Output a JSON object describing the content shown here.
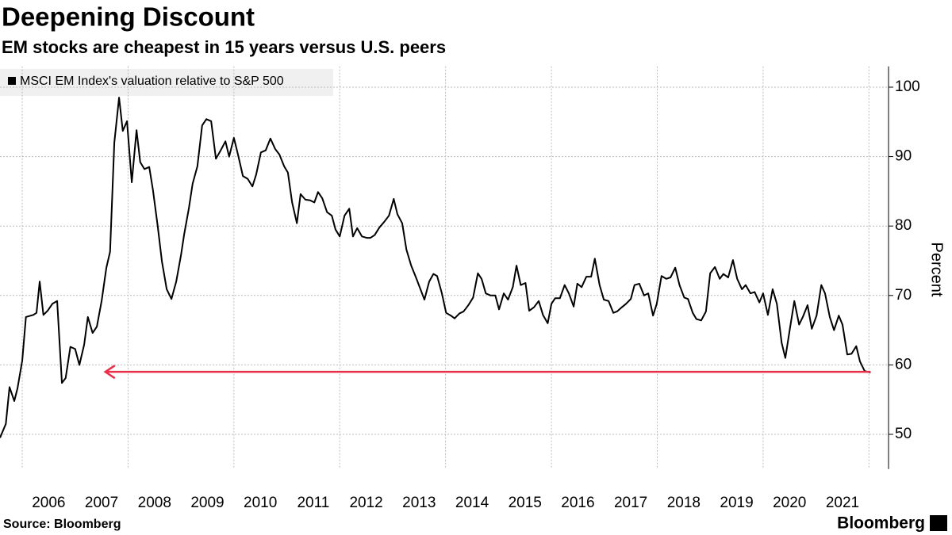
{
  "chart_data": {
    "type": "line",
    "title": "Deepening Discount",
    "subtitle": "EM stocks are cheapest in 15 years versus U.S. peers",
    "y_label": "Percent",
    "source": "Source: Bloomberg",
    "brand": "Bloomberg",
    "x": [
      2005.58,
      2005.69,
      2005.76,
      2005.85,
      2005.91,
      2006.0,
      2006.07,
      2006.21,
      2006.27,
      2006.33,
      2006.4,
      2006.48,
      2006.57,
      2006.66,
      2006.75,
      2006.82,
      2006.91,
      2007.0,
      2007.08,
      2007.17,
      2007.24,
      2007.33,
      2007.41,
      2007.5,
      2007.59,
      2007.66,
      2007.74,
      2007.83,
      2007.9,
      2007.98,
      2008.07,
      2008.16,
      2008.23,
      2008.31,
      2008.4,
      2008.47,
      2008.56,
      2008.64,
      2008.73,
      2008.82,
      2008.91,
      2009.0,
      2009.06,
      2009.15,
      2009.22,
      2009.31,
      2009.4,
      2009.48,
      2009.57,
      2009.66,
      2009.75,
      2009.84,
      2009.91,
      2010.0,
      2010.08,
      2010.17,
      2010.26,
      2010.35,
      2010.42,
      2010.51,
      2010.6,
      2010.69,
      2010.78,
      2010.86,
      2010.95,
      2011.02,
      2011.1,
      2011.19,
      2011.26,
      2011.35,
      2011.44,
      2011.52,
      2011.59,
      2011.67,
      2011.76,
      2011.85,
      2011.92,
      2012.0,
      2012.09,
      2012.18,
      2012.25,
      2012.33,
      2012.42,
      2012.51,
      2012.58,
      2012.66,
      2012.75,
      2012.84,
      2012.93,
      2013.02,
      2013.09,
      2013.18,
      2013.26,
      2013.35,
      2013.44,
      2013.51,
      2013.6,
      2013.69,
      2013.77,
      2013.84,
      2013.93,
      2014.01,
      2014.1,
      2014.17,
      2014.26,
      2014.34,
      2014.43,
      2014.52,
      2014.61,
      2014.68,
      2014.76,
      2014.85,
      2014.94,
      2015.01,
      2015.1,
      2015.18,
      2015.27,
      2015.34,
      2015.42,
      2015.51,
      2015.58,
      2015.67,
      2015.76,
      2015.84,
      2015.93,
      2016.0,
      2016.07,
      2016.16,
      2016.25,
      2016.33,
      2016.42,
      2016.49,
      2016.57,
      2016.66,
      2016.75,
      2016.82,
      2016.91,
      2016.99,
      2017.08,
      2017.17,
      2017.24,
      2017.33,
      2017.41,
      2017.5,
      2017.57,
      2017.66,
      2017.75,
      2017.83,
      2017.92,
      2017.99,
      2018.08,
      2018.17,
      2018.25,
      2018.34,
      2018.42,
      2018.51,
      2018.58,
      2018.67,
      2018.74,
      2018.83,
      2018.92,
      2019.0,
      2019.09,
      2019.18,
      2019.25,
      2019.34,
      2019.43,
      2019.51,
      2019.6,
      2019.67,
      2019.76,
      2019.84,
      2019.93,
      2020.0,
      2020.09,
      2020.18,
      2020.26,
      2020.35,
      2020.42,
      2020.51,
      2020.59,
      2020.68,
      2020.75,
      2020.84,
      2020.92,
      2021.01,
      2021.1,
      2021.17,
      2021.26,
      2021.34,
      2021.43,
      2021.5,
      2021.59,
      2021.67,
      2021.76,
      2021.83,
      2021.92,
      2022.03
    ],
    "series": [
      {
        "name": "MSCI EM Index's valuation relative to S&P 500",
        "color": "#000000",
        "values": [
          49.5,
          51.5,
          56.8,
          54.8,
          56.6,
          60.6,
          66.9,
          67.2,
          67.5,
          72.0,
          67.2,
          67.8,
          68.8,
          69.2,
          57.4,
          58.1,
          62.6,
          62.3,
          60.0,
          62.9,
          66.9,
          64.6,
          65.5,
          69.2,
          74.0,
          76.3,
          92.0,
          98.5,
          93.7,
          95.1,
          86.3,
          93.8,
          89.2,
          88.2,
          88.5,
          85.2,
          80.0,
          74.9,
          70.9,
          69.5,
          72.0,
          75.8,
          78.8,
          82.6,
          86.1,
          88.6,
          94.5,
          95.4,
          95.1,
          89.7,
          90.9,
          92.2,
          90.0,
          92.7,
          90.2,
          87.2,
          86.8,
          85.7,
          87.4,
          90.6,
          90.9,
          92.6,
          91.1,
          90.3,
          88.6,
          87.7,
          83.4,
          80.4,
          84.6,
          83.8,
          83.7,
          83.4,
          84.9,
          84.0,
          82.0,
          81.5,
          79.5,
          78.5,
          81.5,
          82.5,
          78.5,
          79.7,
          78.5,
          78.3,
          78.3,
          78.7,
          79.8,
          80.6,
          81.5,
          83.9,
          81.7,
          80.4,
          76.6,
          74.3,
          72.6,
          71.2,
          69.4,
          72.0,
          73.1,
          72.8,
          70.3,
          67.5,
          67.1,
          66.7,
          67.4,
          67.7,
          68.6,
          69.7,
          73.2,
          72.4,
          70.3,
          70.0,
          70.0,
          68.0,
          70.3,
          69.4,
          71.2,
          74.3,
          71.5,
          71.8,
          67.8,
          68.3,
          69.2,
          67.2,
          66.0,
          68.8,
          69.6,
          69.6,
          71.5,
          70.3,
          68.4,
          71.7,
          71.2,
          72.7,
          72.7,
          75.3,
          71.5,
          69.4,
          69.2,
          67.5,
          67.7,
          68.3,
          68.8,
          69.5,
          71.5,
          71.7,
          70.0,
          70.3,
          67.1,
          68.8,
          72.8,
          72.4,
          72.6,
          74.0,
          71.5,
          69.7,
          69.5,
          67.5,
          66.6,
          66.4,
          67.7,
          73.2,
          74.1,
          72.4,
          73.1,
          72.6,
          75.1,
          72.4,
          70.9,
          71.5,
          70.3,
          70.5,
          69.0,
          70.3,
          67.2,
          70.9,
          68.8,
          63.2,
          61.0,
          65.4,
          69.2,
          65.8,
          66.9,
          68.6,
          65.2,
          67.1,
          71.5,
          70.3,
          66.9,
          65.0,
          67.1,
          65.8,
          61.5,
          61.6,
          62.7,
          60.5,
          59.1,
          58.9
        ]
      }
    ],
    "xlim": [
      2005.58,
      2022.37
    ],
    "xticks": [
      {
        "value": 2006.5,
        "label": "2006"
      },
      {
        "value": 2007.5,
        "label": "2007"
      },
      {
        "value": 2008.5,
        "label": "2008"
      },
      {
        "value": 2009.5,
        "label": "2009"
      },
      {
        "value": 2010.5,
        "label": "2010"
      },
      {
        "value": 2011.5,
        "label": "2011"
      },
      {
        "value": 2012.5,
        "label": "2012"
      },
      {
        "value": 2013.5,
        "label": "2013"
      },
      {
        "value": 2014.5,
        "label": "2014"
      },
      {
        "value": 2015.5,
        "label": "2015"
      },
      {
        "value": 2016.5,
        "label": "2016"
      },
      {
        "value": 2017.5,
        "label": "2017"
      },
      {
        "value": 2018.5,
        "label": "2018"
      },
      {
        "value": 2019.5,
        "label": "2019"
      },
      {
        "value": 2020.5,
        "label": "2020"
      },
      {
        "value": 2021.5,
        "label": "2021"
      }
    ],
    "xgrid": [
      2006,
      2008,
      2010,
      2012,
      2014,
      2016,
      2018,
      2020,
      2022
    ],
    "ylim": [
      45,
      103
    ],
    "yticks": [
      50,
      60,
      70,
      80,
      90,
      100
    ],
    "grid": true,
    "legend": "top-left",
    "arrow": {
      "x": [
        2022.03,
        2007.57
      ],
      "y": 59,
      "color": "#e8304a"
    }
  }
}
